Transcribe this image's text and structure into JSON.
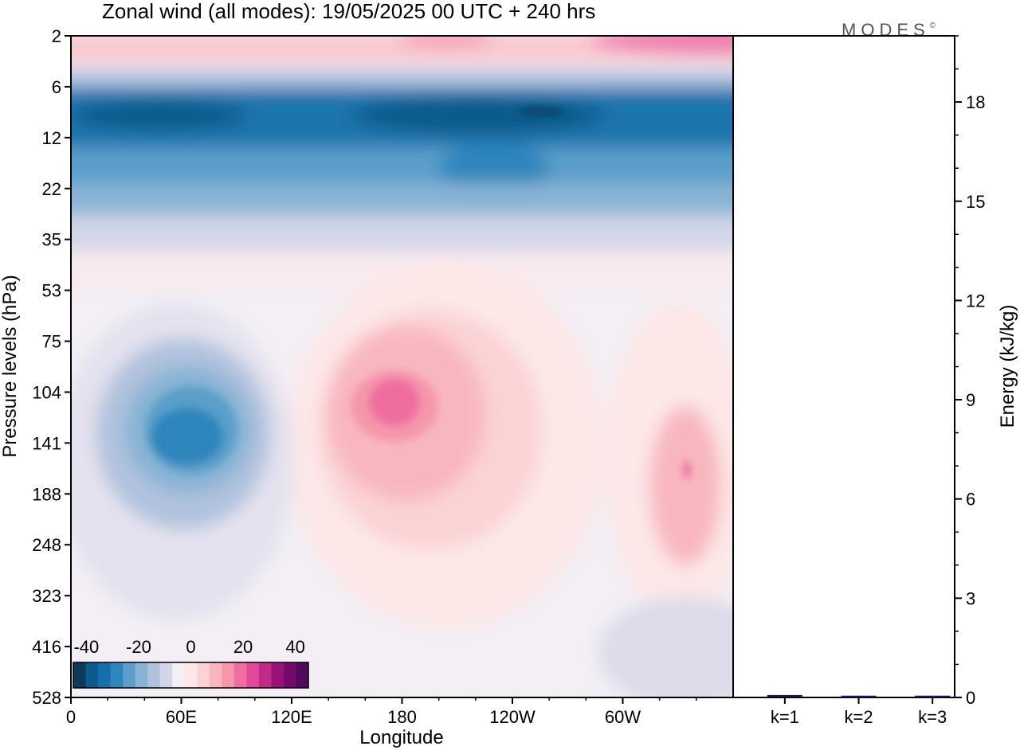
{
  "chart_data": {
    "type": "heatmap",
    "title": "Zonal wind (all modes):  19/05/2025  00 UTC  + 240 hrs",
    "logo": "MODES",
    "logo_mark": "©",
    "xlabel": "Longitude",
    "ylabel": "Pressure levels (hPa)",
    "x_ticks": [
      "0",
      "60E",
      "120E",
      "180",
      "120W",
      "60W"
    ],
    "x_tick_values": [
      0,
      60,
      120,
      180,
      240,
      300
    ],
    "xlim": [
      0,
      360
    ],
    "y_ticks": [
      "2",
      "6",
      "12",
      "22",
      "35",
      "53",
      "75",
      "104",
      "141",
      "188",
      "248",
      "323",
      "416",
      "528"
    ],
    "y_scale": "level-index",
    "colorbar": {
      "ticks": [
        "-40",
        "-20",
        "0",
        "20",
        "40"
      ],
      "range": [
        -45,
        45
      ],
      "step": 5,
      "colors": [
        "#0e3a5a",
        "#0d5a8c",
        "#1470ad",
        "#2e86bd",
        "#5a9fca",
        "#88b3d4",
        "#b1c2de",
        "#d2d6e8",
        "#f2eff5",
        "#fde7e7",
        "#fbd3d5",
        "#f8b7bf",
        "#f596ab",
        "#ef6ea0",
        "#e04a98",
        "#c22a88",
        "#9a1277",
        "#75096d",
        "#4f0a60"
      ]
    },
    "field_features": [
      {
        "name": "stratospheric easterly jet",
        "lon": [
          0,
          360
        ],
        "levels": [
          "6",
          "22"
        ],
        "value": -35
      },
      {
        "name": "upper stratospheric westerlies",
        "lon": [
          0,
          360
        ],
        "levels": [
          "2",
          "4"
        ],
        "value": 15
      },
      {
        "name": "easterly core",
        "lon_center": 65,
        "level": "141",
        "value": -27
      },
      {
        "name": "westerly maximum",
        "lon_center": 180,
        "level": "104",
        "value": 23
      },
      {
        "name": "westerly maximum",
        "lon_center": 335,
        "level": "141",
        "value": 15
      }
    ],
    "energy_panel": {
      "type": "bar",
      "ylabel": "Energy (kJ/kg)",
      "categories": [
        "k=1",
        "k=2",
        "k=3"
      ],
      "values": [
        0.05,
        0.03,
        0.03
      ],
      "ylim": [
        0,
        20
      ],
      "y_ticks": [
        "0",
        "3",
        "6",
        "9",
        "12",
        "15",
        "18"
      ],
      "y_tick_values": [
        0,
        3,
        6,
        9,
        12,
        15,
        18
      ],
      "bar_color": "#1a1a6e"
    }
  }
}
